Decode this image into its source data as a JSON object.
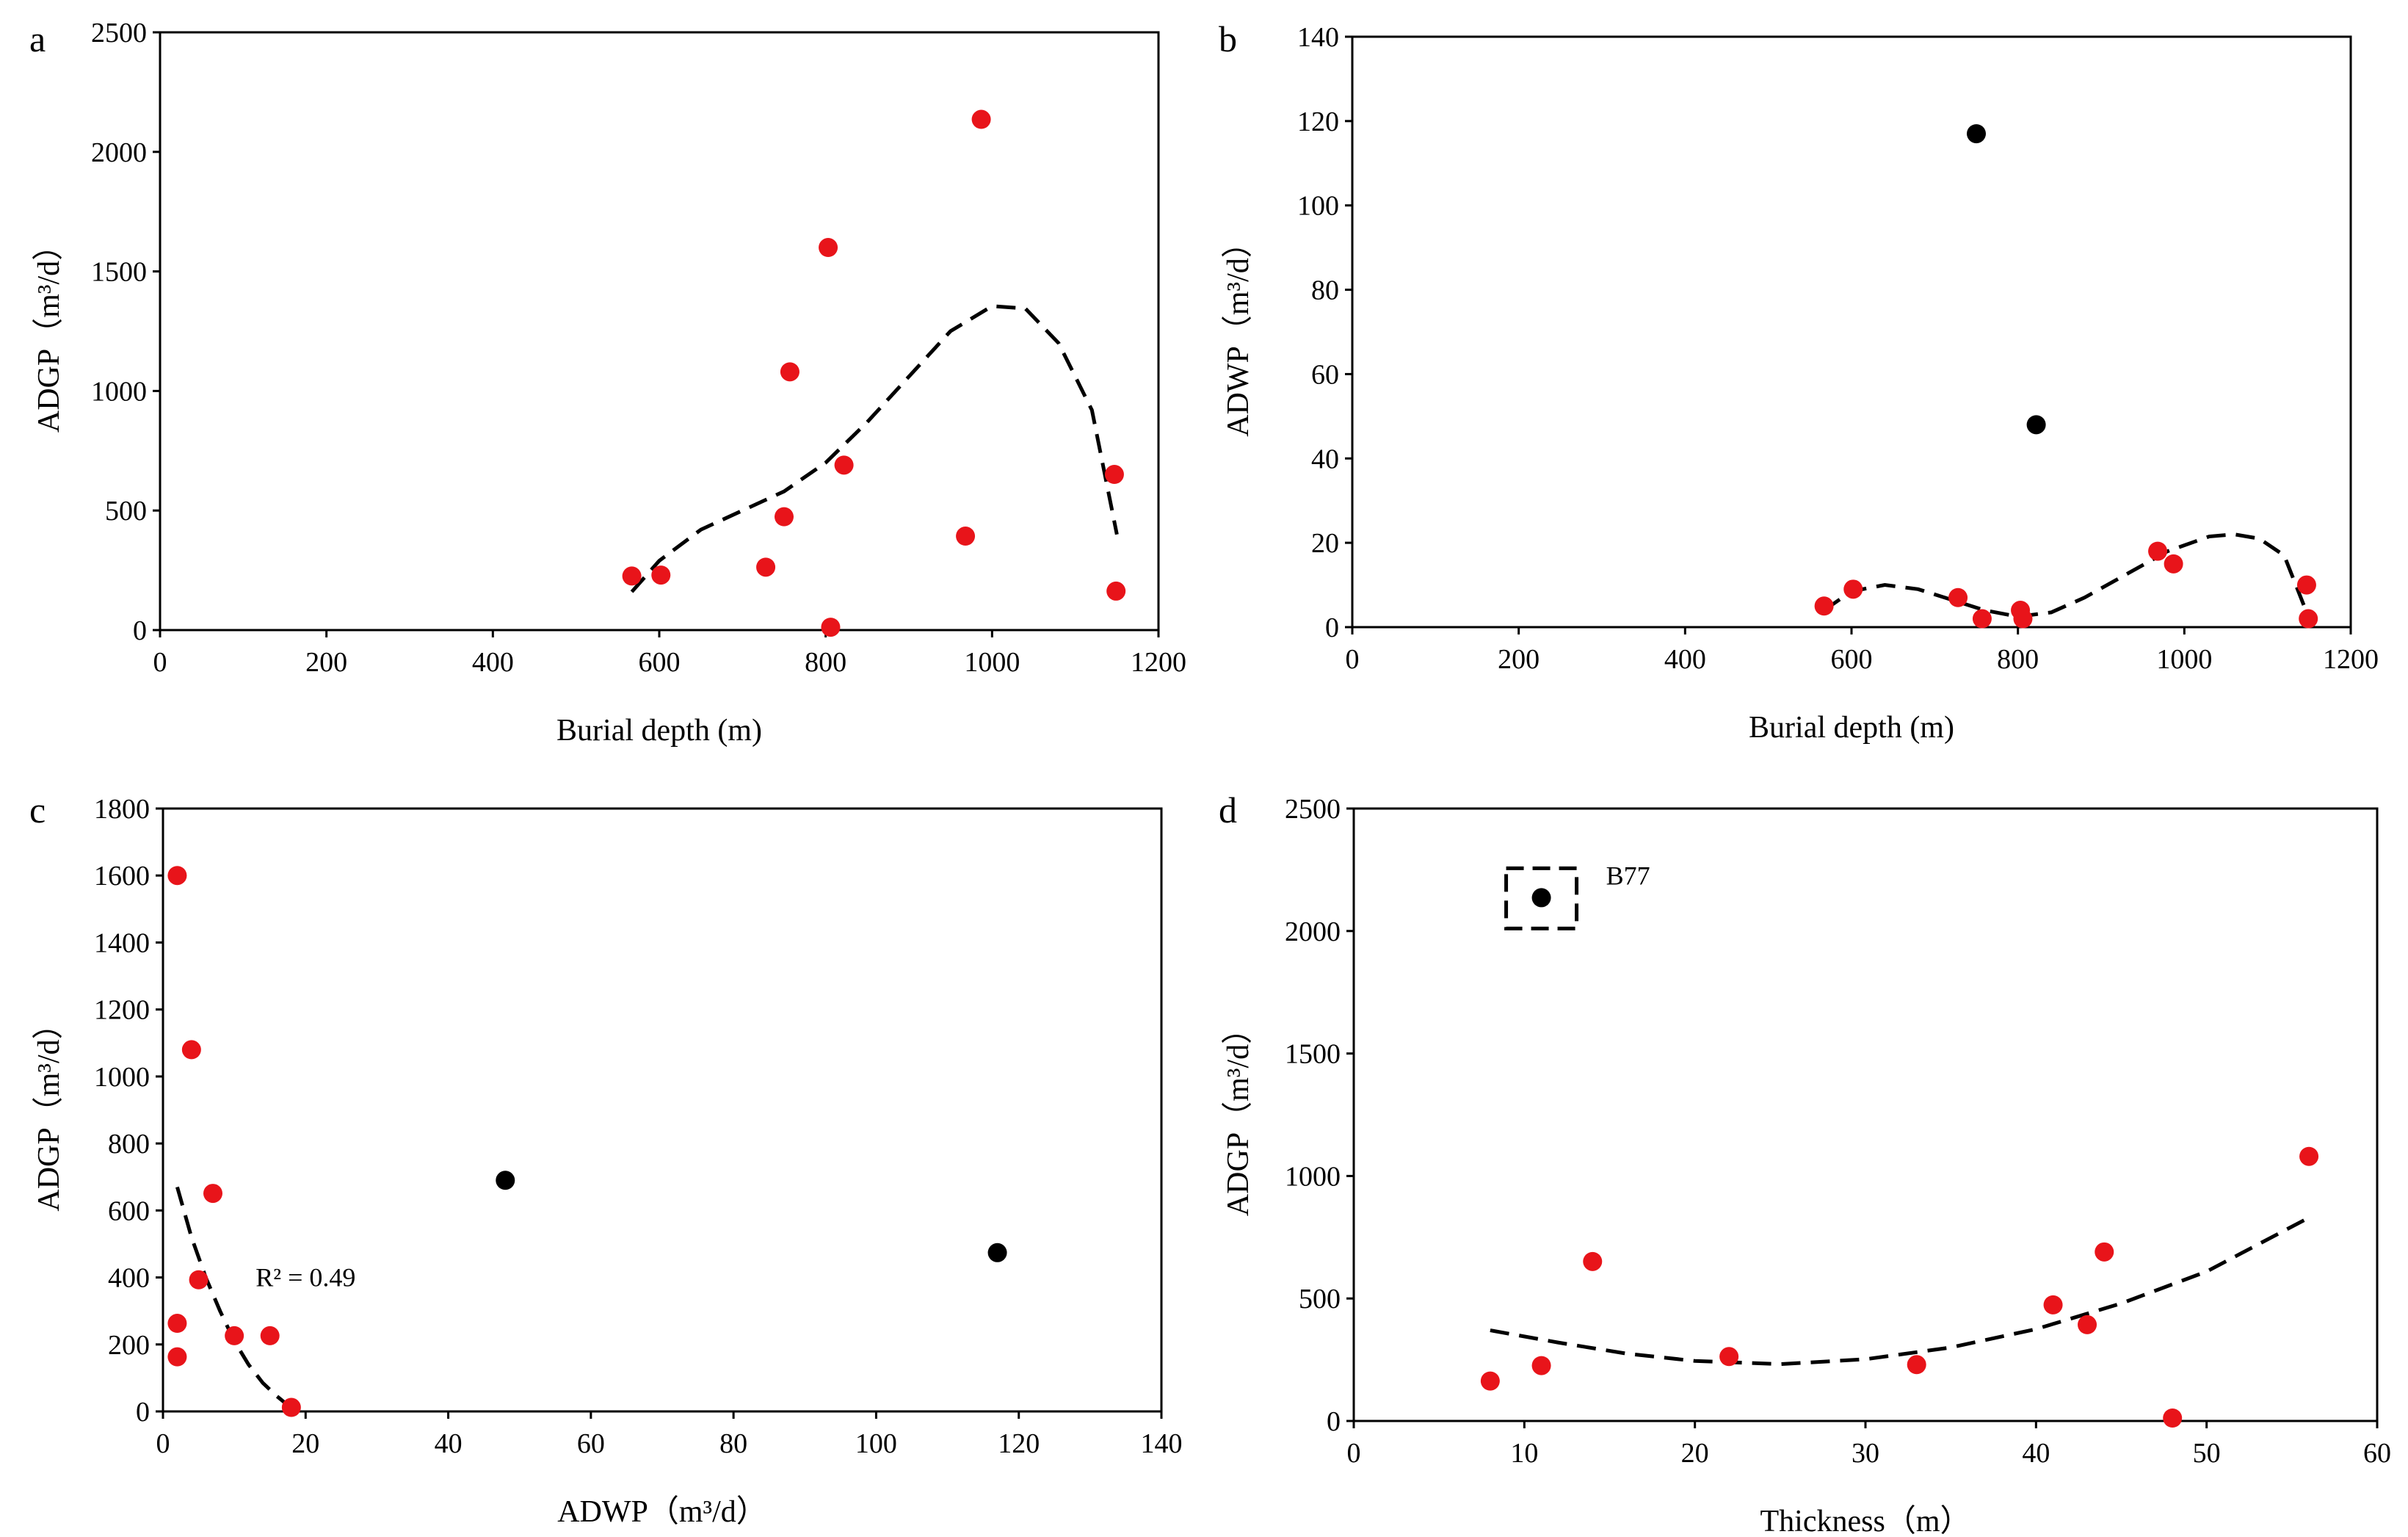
{
  "chart_data": [
    {
      "type": "scatter",
      "panel_label": "a",
      "xlabel": "Burial depth (m)",
      "ylabel": "ADGP（m³/d）",
      "xlim": [
        0,
        1200
      ],
      "ylim": [
        0,
        2500
      ],
      "xticks": [
        "0",
        "200",
        "400",
        "600",
        "800",
        "1000",
        "1200"
      ],
      "yticks": [
        "0",
        "500",
        "1000",
        "1500",
        "2000",
        "2500"
      ],
      "series": [
        {
          "name": "red",
          "color": "#e8141a",
          "points": [
            [
              567,
              226
            ],
            [
              602,
              230
            ],
            [
              728,
              263
            ],
            [
              750,
              474
            ],
            [
              757,
              1080
            ],
            [
              803,
              1600
            ],
            [
              806,
              12
            ],
            [
              822,
              690
            ],
            [
              968,
              393
            ],
            [
              987,
              2136
            ],
            [
              1147,
              651
            ],
            [
              1149,
              163
            ]
          ]
        }
      ],
      "trend": {
        "color": "#000000",
        "style": "dashed",
        "points": [
          [
            567,
            160
          ],
          [
            600,
            290
          ],
          [
            650,
            420
          ],
          [
            700,
            500
          ],
          [
            750,
            580
          ],
          [
            800,
            700
          ],
          [
            850,
            870
          ],
          [
            900,
            1060
          ],
          [
            950,
            1250
          ],
          [
            1000,
            1355
          ],
          [
            1040,
            1345
          ],
          [
            1080,
            1200
          ],
          [
            1120,
            920
          ],
          [
            1150,
            400
          ]
        ]
      }
    },
    {
      "type": "scatter",
      "panel_label": "b",
      "xlabel": "Burial depth (m)",
      "ylabel": "ADWP（m³/d）",
      "xlim": [
        0,
        1200
      ],
      "ylim": [
        0,
        140
      ],
      "xticks": [
        "0",
        "200",
        "400",
        "600",
        "800",
        "1000",
        "1200"
      ],
      "yticks": [
        "0",
        "20",
        "40",
        "60",
        "80",
        "100",
        "120",
        "140"
      ],
      "series": [
        {
          "name": "red",
          "color": "#e8141a",
          "points": [
            [
              567,
              5
            ],
            [
              602,
              9
            ],
            [
              728,
              7
            ],
            [
              757,
              2
            ],
            [
              803,
              4
            ],
            [
              806,
              2
            ],
            [
              968,
              18
            ],
            [
              987,
              15
            ],
            [
              1147,
              10
            ],
            [
              1149,
              2
            ]
          ]
        },
        {
          "name": "black",
          "color": "#000000",
          "points": [
            [
              750,
              117
            ],
            [
              822,
              48
            ]
          ]
        }
      ],
      "trend": {
        "color": "#000000",
        "style": "dashed",
        "points": [
          [
            567,
            4
          ],
          [
            600,
            8.5
          ],
          [
            640,
            10
          ],
          [
            680,
            9
          ],
          [
            720,
            6.5
          ],
          [
            760,
            4
          ],
          [
            800,
            2.5
          ],
          [
            840,
            3.5
          ],
          [
            880,
            7
          ],
          [
            930,
            12.5
          ],
          [
            980,
            18
          ],
          [
            1030,
            21.5
          ],
          [
            1060,
            22
          ],
          [
            1090,
            21
          ],
          [
            1120,
            17
          ],
          [
            1150,
            2
          ]
        ]
      }
    },
    {
      "type": "scatter",
      "panel_label": "c",
      "xlabel": "ADWP（m³/d）",
      "ylabel": "ADGP（m³/d）",
      "xlim": [
        0,
        140
      ],
      "ylim": [
        0,
        1800
      ],
      "xticks": [
        "0",
        "20",
        "40",
        "60",
        "80",
        "100",
        "120",
        "140"
      ],
      "yticks": [
        "0",
        "200",
        "400",
        "600",
        "800",
        "1000",
        "1200",
        "1400",
        "1600",
        "1800"
      ],
      "annotation": "R² = 0.49",
      "series": [
        {
          "name": "red",
          "color": "#e8141a",
          "points": [
            [
              2,
              1600
            ],
            [
              4,
              1080
            ],
            [
              7,
              651
            ],
            [
              5,
              393
            ],
            [
              2,
              263
            ],
            [
              2,
              163
            ],
            [
              10,
              226
            ],
            [
              15,
              226
            ],
            [
              18,
              12
            ]
          ]
        },
        {
          "name": "black",
          "color": "#000000",
          "points": [
            [
              48,
              690
            ],
            [
              117,
              474
            ]
          ]
        }
      ],
      "trend": {
        "color": "#000000",
        "style": "dashed",
        "points": [
          [
            2,
            670
          ],
          [
            4,
            520
          ],
          [
            6,
            400
          ],
          [
            8,
            300
          ],
          [
            10,
            210
          ],
          [
            12,
            140
          ],
          [
            14,
            85
          ],
          [
            16,
            45
          ],
          [
            18,
            10
          ]
        ]
      }
    },
    {
      "type": "scatter",
      "panel_label": "d",
      "xlabel": "Thickness（m）",
      "ylabel": "ADGP（m³/d）",
      "xlim": [
        0,
        60
      ],
      "ylim": [
        0,
        2500
      ],
      "xticks": [
        "0",
        "10",
        "20",
        "30",
        "40",
        "50",
        "60"
      ],
      "yticks": [
        "0",
        "500",
        "1000",
        "1500",
        "2000",
        "2500"
      ],
      "annotation": "B77",
      "series": [
        {
          "name": "red",
          "color": "#e8141a",
          "points": [
            [
              8,
              163
            ],
            [
              11,
              226
            ],
            [
              14,
              651
            ],
            [
              22,
              263
            ],
            [
              33,
              230
            ],
            [
              41,
              474
            ],
            [
              43,
              393
            ],
            [
              44,
              690
            ],
            [
              48,
              12
            ],
            [
              56,
              1080
            ]
          ]
        },
        {
          "name": "black",
          "color": "#000000",
          "points": [
            [
              11,
              2136
            ]
          ]
        }
      ],
      "trend": {
        "color": "#000000",
        "style": "dashed",
        "points": [
          [
            8,
            370
          ],
          [
            12,
            320
          ],
          [
            16,
            275
          ],
          [
            20,
            245
          ],
          [
            25,
            232
          ],
          [
            30,
            252
          ],
          [
            35,
            300
          ],
          [
            40,
            375
          ],
          [
            45,
            480
          ],
          [
            50,
            610
          ],
          [
            56,
            830
          ]
        ]
      }
    }
  ]
}
